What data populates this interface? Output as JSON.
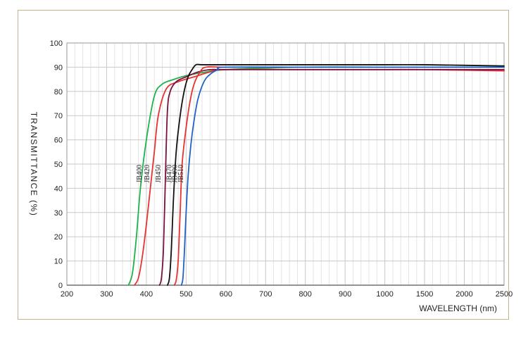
{
  "chart_data": {
    "type": "line",
    "xlabel": "WAVELENGTH (nm)",
    "ylabel": "TRANSMITTANCE  (%)",
    "x_ticks": [
      "200",
      "300",
      "400",
      "500",
      "600",
      "700",
      "800",
      "900",
      "1000",
      "1500",
      "2000",
      "2500"
    ],
    "x_tick_values": [
      200,
      300,
      400,
      500,
      600,
      700,
      800,
      900,
      1000,
      1500,
      2000,
      2500
    ],
    "x_scale": "piecewise: 100 nm per division from 200 to 1000, then 500 nm per division to 2500",
    "y_ticks": [
      "0",
      "10",
      "20",
      "30",
      "40",
      "50",
      "60",
      "70",
      "80",
      "90",
      "100"
    ],
    "ylim": [
      0,
      100
    ],
    "grid": true,
    "colors": {
      "JB400": "#1fb24a",
      "JB420": "#e8322f",
      "JB450": "#7a1040",
      "JB470": "#111111",
      "JB490": "#e8322f",
      "JB510": "#1f63c8"
    },
    "series": [
      {
        "name": "JB400",
        "x": [
          355,
          365,
          375,
          385,
          400,
          420,
          440,
          470,
          500,
          550,
          600,
          800,
          1000,
          1500,
          2500
        ],
        "y": [
          0,
          5,
          20,
          40,
          60,
          78,
          83,
          85,
          86.5,
          88,
          89,
          90,
          90,
          90,
          90
        ]
      },
      {
        "name": "JB420",
        "x": [
          370,
          380,
          390,
          400,
          410,
          420,
          430,
          450,
          480,
          520,
          560,
          600,
          800,
          1000,
          1500,
          2500
        ],
        "y": [
          0,
          3,
          12,
          25,
          40,
          55,
          70,
          81,
          84,
          86,
          88,
          89,
          89,
          89,
          89,
          88.5
        ]
      },
      {
        "name": "JB450",
        "x": [
          433,
          438,
          443,
          448,
          453,
          460,
          475,
          500,
          530,
          560,
          600,
          800,
          1000,
          1500,
          2500
        ],
        "y": [
          0,
          3,
          15,
          45,
          72,
          80,
          84,
          86,
          88,
          89,
          89,
          89,
          89,
          89,
          89
        ]
      },
      {
        "name": "JB470",
        "x": [
          453,
          458,
          463,
          468,
          475,
          485,
          495,
          505,
          515,
          525,
          540,
          600,
          800,
          1000,
          1500,
          2500
        ],
        "y": [
          0,
          3,
          15,
          35,
          55,
          70,
          80,
          86,
          89,
          91,
          91,
          91,
          91,
          91,
          91,
          90.5
        ]
      },
      {
        "name": "JB490",
        "x": [
          470,
          475,
          480,
          485,
          490,
          500,
          510,
          520,
          535,
          550,
          600,
          800,
          1000,
          1500,
          2500
        ],
        "y": [
          0,
          2,
          10,
          30,
          50,
          65,
          76,
          83,
          88,
          90,
          90,
          90,
          90,
          90,
          90
        ]
      },
      {
        "name": "JB510",
        "x": [
          488,
          492,
          496,
          500,
          505,
          512,
          520,
          530,
          545,
          560,
          580,
          600,
          800,
          1000,
          1500,
          2500
        ],
        "y": [
          0,
          3,
          15,
          30,
          45,
          58,
          68,
          77,
          84,
          87,
          89,
          90,
          90,
          90,
          90,
          90
        ]
      }
    ]
  }
}
